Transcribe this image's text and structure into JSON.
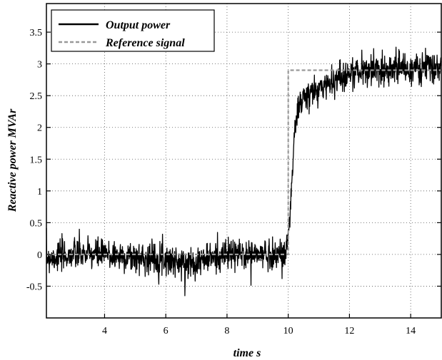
{
  "chart_data": {
    "type": "line",
    "title": "",
    "xlabel": "time  s",
    "ylabel": "Reactive power  MVAr",
    "xlim": [
      2.1,
      15
    ],
    "ylim": [
      -1.0,
      3.95
    ],
    "grid": true,
    "legend_position": "top-left",
    "x_ticks": [
      4,
      6,
      8,
      10,
      12,
      14
    ],
    "x_tick_labels": [
      "4",
      "6",
      "8",
      "10",
      "12",
      "14"
    ],
    "y_ticks": [
      -0.5,
      0,
      0.5,
      1,
      1.5,
      2,
      2.5,
      3,
      3.5
    ],
    "y_tick_labels": [
      "-0.5",
      "0",
      "0.5",
      "1",
      "1.5",
      "2",
      "2.5",
      "3",
      "3.5"
    ],
    "series": [
      {
        "name": "Output power",
        "color": "#000000",
        "style": "solid",
        "noise_amplitude": 0.2,
        "x": [
          2.1,
          3.0,
          4.0,
          5.0,
          6.0,
          6.5,
          7.0,
          7.5,
          8.0,
          9.0,
          9.9,
          10.0,
          10.1,
          10.2,
          10.3,
          10.5,
          11.0,
          11.5,
          12.0,
          12.5,
          13.0,
          13.5,
          14.0,
          14.5,
          15.0
        ],
        "y": [
          -0.05,
          0.0,
          0.0,
          -0.05,
          -0.05,
          -0.15,
          -0.1,
          -0.05,
          0.0,
          0.0,
          0.0,
          0.3,
          1.0,
          1.8,
          2.3,
          2.45,
          2.6,
          2.75,
          2.85,
          2.9,
          2.9,
          2.95,
          2.9,
          2.95,
          2.9
        ]
      },
      {
        "name": "Reference signal",
        "color": "#999999",
        "style": "dashed",
        "x": [
          2.1,
          10.0,
          10.0,
          15.0
        ],
        "y": [
          0.0,
          0.0,
          2.9,
          2.9
        ]
      }
    ]
  }
}
